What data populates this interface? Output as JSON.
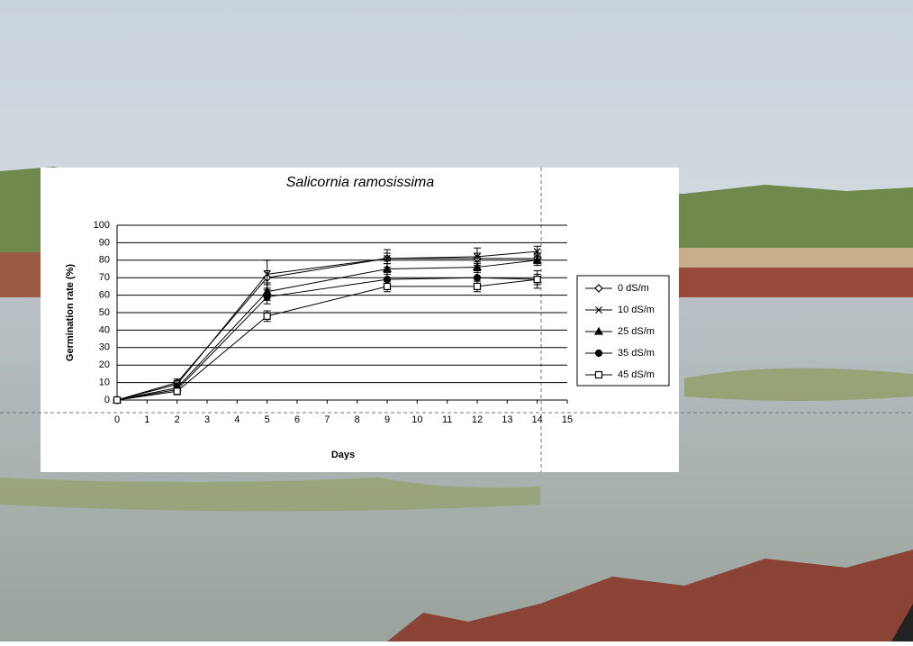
{
  "chart_data": {
    "type": "line",
    "title": "Salicornia ramosissima",
    "x_label": "Days",
    "y_label": "Germination rate (%)",
    "x": [
      0,
      2,
      5,
      9,
      12,
      14
    ],
    "series": [
      {
        "name": "0 dS/m",
        "color": "#000000",
        "marker": "diamond",
        "values": [
          0,
          10,
          70,
          81,
          81,
          81
        ],
        "errors": [
          0,
          2,
          4,
          3,
          3,
          3
        ]
      },
      {
        "name": "10 dS/m",
        "color": "#000000",
        "marker": "x",
        "values": [
          0,
          9,
          72,
          81,
          82,
          85
        ],
        "errors": [
          0,
          2,
          8,
          5,
          5,
          3
        ]
      },
      {
        "name": "25 dS/m",
        "color": "#000000",
        "marker": "triangle",
        "values": [
          0,
          7,
          62,
          75,
          76,
          80
        ],
        "errors": [
          0,
          2,
          5,
          3,
          3,
          3
        ]
      },
      {
        "name": "35 dS/m",
        "color": "#000000",
        "marker": "circle",
        "values": [
          0,
          6,
          59,
          69,
          70,
          69
        ],
        "errors": [
          0,
          2,
          4,
          4,
          4,
          5
        ]
      },
      {
        "name": "45 dS/m",
        "color": "#000000",
        "marker": "square",
        "values": [
          0,
          5,
          48,
          65,
          65,
          69
        ],
        "errors": [
          0,
          2,
          3,
          3,
          3,
          3
        ]
      }
    ],
    "xlim": [
      0,
      15
    ],
    "xticks": [
      0,
      1,
      2,
      3,
      4,
      5,
      6,
      7,
      8,
      9,
      10,
      11,
      12,
      13,
      14,
      15
    ],
    "ylim": [
      0,
      100
    ],
    "yticks": [
      0,
      10,
      20,
      30,
      40,
      50,
      60,
      70,
      80,
      90,
      100
    ],
    "grid": true,
    "legend": "right"
  }
}
